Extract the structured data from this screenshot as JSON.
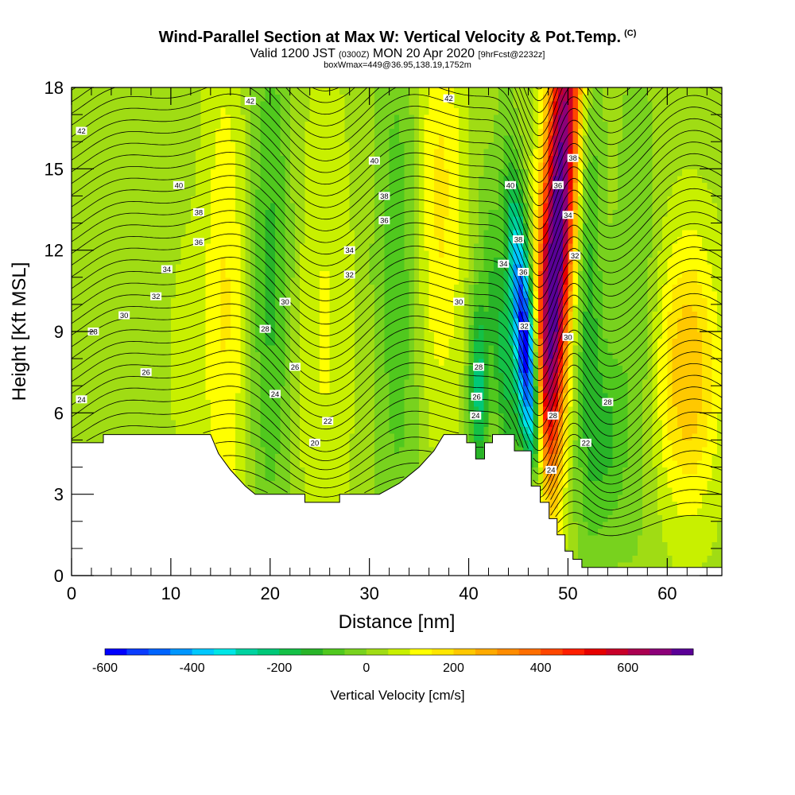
{
  "title": {
    "main": "Wind-Parallel Section at Max W: Vertical Velocity & Pot.Temp.",
    "copyright": "(C)",
    "valid_prefix": "Valid 1200 JST",
    "valid_utc": "(0300Z)",
    "valid_date": "MON 20 Apr 2020",
    "forecast": "[9hrFcst@2232z]",
    "box_info": "boxWmax=449@36.95,138.19,1752m"
  },
  "chart_data": {
    "type": "heatmap",
    "xlabel": "Distance [nm]",
    "ylabel": "Height [Kft MSL]",
    "xlim": [
      0,
      65.5
    ],
    "ylim": [
      0,
      18
    ],
    "x_ticks": [
      0,
      10,
      20,
      30,
      40,
      50,
      60
    ],
    "y_ticks": [
      0,
      3,
      6,
      9,
      12,
      15,
      18
    ],
    "colorbar": {
      "label": "Vertical Velocity [cm/s]",
      "min": -600,
      "max": 750,
      "step": 50,
      "tick_values": [
        -600,
        -400,
        -200,
        0,
        200,
        400,
        600
      ],
      "colors": [
        "#0000ff",
        "#0a3cff",
        "#0064ff",
        "#0096ff",
        "#00c8ff",
        "#00e6e6",
        "#00d2a0",
        "#00c878",
        "#14c046",
        "#28b428",
        "#50c81e",
        "#78d21e",
        "#a0dc14",
        "#c8f000",
        "#ffff00",
        "#ffe600",
        "#ffc800",
        "#ffaa00",
        "#ff8c00",
        "#ff6e00",
        "#ff4600",
        "#ff1e00",
        "#e60000",
        "#c80028",
        "#aa0050",
        "#8c0078",
        "#5a0096"
      ]
    },
    "features": [
      {
        "name": "downdraft",
        "x": 45.8,
        "y": 8.5,
        "value": -600
      },
      {
        "name": "updraft",
        "x": 49.5,
        "y": 11,
        "value": 700
      },
      {
        "name": "weak updraft",
        "x": 62,
        "y": 7.5,
        "value": 200
      }
    ],
    "terrain_top": [
      [
        0,
        4.9
      ],
      [
        3.2,
        4.9
      ],
      [
        3.2,
        5.2
      ],
      [
        14,
        5.2
      ],
      [
        14.8,
        4.5
      ],
      [
        16,
        3.9
      ],
      [
        17.5,
        3.3
      ],
      [
        18.5,
        3.0
      ],
      [
        23.5,
        3.0
      ],
      [
        23.5,
        2.7
      ],
      [
        27,
        2.7
      ],
      [
        27,
        3.0
      ],
      [
        31,
        3.0
      ],
      [
        33,
        3.4
      ],
      [
        35,
        4.0
      ],
      [
        36.5,
        4.6
      ],
      [
        37.5,
        5.2
      ],
      [
        39.8,
        5.2
      ],
      [
        39.8,
        4.9
      ],
      [
        40.7,
        4.9
      ],
      [
        40.7,
        4.3
      ],
      [
        41.6,
        4.3
      ],
      [
        41.6,
        4.9
      ],
      [
        42.4,
        4.9
      ],
      [
        42.4,
        5.2
      ],
      [
        44.6,
        5.2
      ],
      [
        44.6,
        4.6
      ],
      [
        46.3,
        4.6
      ],
      [
        46.3,
        3.3
      ],
      [
        47.2,
        3.3
      ],
      [
        47.2,
        2.7
      ],
      [
        48.1,
        2.7
      ],
      [
        48.1,
        2.1
      ],
      [
        48.9,
        2.1
      ],
      [
        48.9,
        1.5
      ],
      [
        49.7,
        1.5
      ],
      [
        49.7,
        0.9
      ],
      [
        50.5,
        0.9
      ],
      [
        50.5,
        0.6
      ],
      [
        51.4,
        0.6
      ],
      [
        51.4,
        0.3
      ],
      [
        65.5,
        0.3
      ]
    ],
    "contour_labels": [
      {
        "text": "42",
        "x": 1,
        "y": 16.4
      },
      {
        "text": "42",
        "x": 18,
        "y": 17.5
      },
      {
        "text": "42",
        "x": 38,
        "y": 17.6
      },
      {
        "text": "40",
        "x": 10.8,
        "y": 14.4
      },
      {
        "text": "40",
        "x": 30.5,
        "y": 15.3
      },
      {
        "text": "40",
        "x": 44.2,
        "y": 14.4
      },
      {
        "text": "38",
        "x": 12.8,
        "y": 13.4
      },
      {
        "text": "38",
        "x": 31.5,
        "y": 14.0
      },
      {
        "text": "38",
        "x": 45,
        "y": 12.4
      },
      {
        "text": "38",
        "x": 50.5,
        "y": 15.4
      },
      {
        "text": "36",
        "x": 12.8,
        "y": 12.3
      },
      {
        "text": "36",
        "x": 31.5,
        "y": 13.1
      },
      {
        "text": "36",
        "x": 45.5,
        "y": 11.2
      },
      {
        "text": "36",
        "x": 49,
        "y": 14.4
      },
      {
        "text": "34",
        "x": 9.6,
        "y": 11.3
      },
      {
        "text": "34",
        "x": 28,
        "y": 12
      },
      {
        "text": "34",
        "x": 43.5,
        "y": 11.5
      },
      {
        "text": "34",
        "x": 50,
        "y": 13.3
      },
      {
        "text": "32",
        "x": 8.5,
        "y": 10.3
      },
      {
        "text": "32",
        "x": 28,
        "y": 11.1
      },
      {
        "text": "32",
        "x": 45.6,
        "y": 9.2
      },
      {
        "text": "32",
        "x": 50.7,
        "y": 11.8
      },
      {
        "text": "30",
        "x": 5.3,
        "y": 9.6
      },
      {
        "text": "30",
        "x": 21.5,
        "y": 10.1
      },
      {
        "text": "30",
        "x": 39,
        "y": 10.1
      },
      {
        "text": "30",
        "x": 50,
        "y": 8.8
      },
      {
        "text": "28",
        "x": 2.2,
        "y": 9.0
      },
      {
        "text": "28",
        "x": 19.5,
        "y": 9.1
      },
      {
        "text": "28",
        "x": 41,
        "y": 7.7
      },
      {
        "text": "28",
        "x": 48.5,
        "y": 5.9
      },
      {
        "text": "28",
        "x": 54,
        "y": 6.4
      },
      {
        "text": "26",
        "x": 7.5,
        "y": 7.5
      },
      {
        "text": "26",
        "x": 22.5,
        "y": 7.7
      },
      {
        "text": "26",
        "x": 40.8,
        "y": 6.6
      },
      {
        "text": "24",
        "x": 1,
        "y": 6.5
      },
      {
        "text": "24",
        "x": 20.5,
        "y": 6.7
      },
      {
        "text": "24",
        "x": 40.7,
        "y": 5.9
      },
      {
        "text": "24",
        "x": 48.3,
        "y": 3.9
      },
      {
        "text": "22",
        "x": 25.8,
        "y": 5.7
      },
      {
        "text": "22",
        "x": 51.8,
        "y": 4.9
      },
      {
        "text": "20",
        "x": 24.5,
        "y": 4.9
      }
    ]
  }
}
